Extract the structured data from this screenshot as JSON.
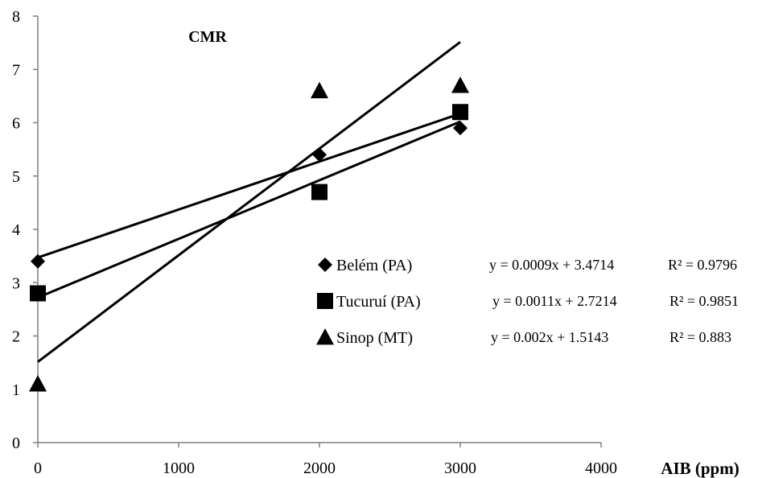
{
  "chart_data": {
    "type": "scatter",
    "title": "CMR",
    "xlabel": "AIB (ppm)",
    "ylabel": "",
    "xlim": [
      0,
      4000
    ],
    "ylim": [
      0,
      8
    ],
    "xticks": [
      "0",
      "1000",
      "2000",
      "3000",
      "4000"
    ],
    "yticks": [
      "0",
      "1",
      "2",
      "3",
      "4",
      "5",
      "6",
      "7",
      "8"
    ],
    "grid": false,
    "legend_position": "center-right",
    "series": [
      {
        "name": "Belém (PA)",
        "marker": "diamond",
        "x": [
          0,
          2000,
          3000
        ],
        "y": [
          3.4,
          5.4,
          5.9
        ],
        "trendline": {
          "slope": 0.0009,
          "intercept": 3.4714
        },
        "equation": "y = 0.0009x + 3.4714",
        "r2": "R² = 0.9796"
      },
      {
        "name": "Tucuruí (PA)",
        "marker": "square",
        "x": [
          0,
          2000,
          3000
        ],
        "y": [
          2.8,
          4.7,
          6.2
        ],
        "trendline": {
          "slope": 0.0011,
          "intercept": 2.7214
        },
        "equation": "y = 0.0011x + 2.7214",
        "r2": "R² = 0.9851"
      },
      {
        "name": "Sinop (MT)",
        "marker": "triangle",
        "x": [
          0,
          2000,
          3000
        ],
        "y": [
          1.1,
          6.6,
          6.7
        ],
        "trendline": {
          "slope": 0.002,
          "intercept": 1.5143
        },
        "equation": "y = 0.002x + 1.5143",
        "r2": "R² = 0.883"
      }
    ],
    "colors": {
      "axis": "#7f7f7f",
      "marker": "#000000",
      "line": "#000000"
    }
  }
}
